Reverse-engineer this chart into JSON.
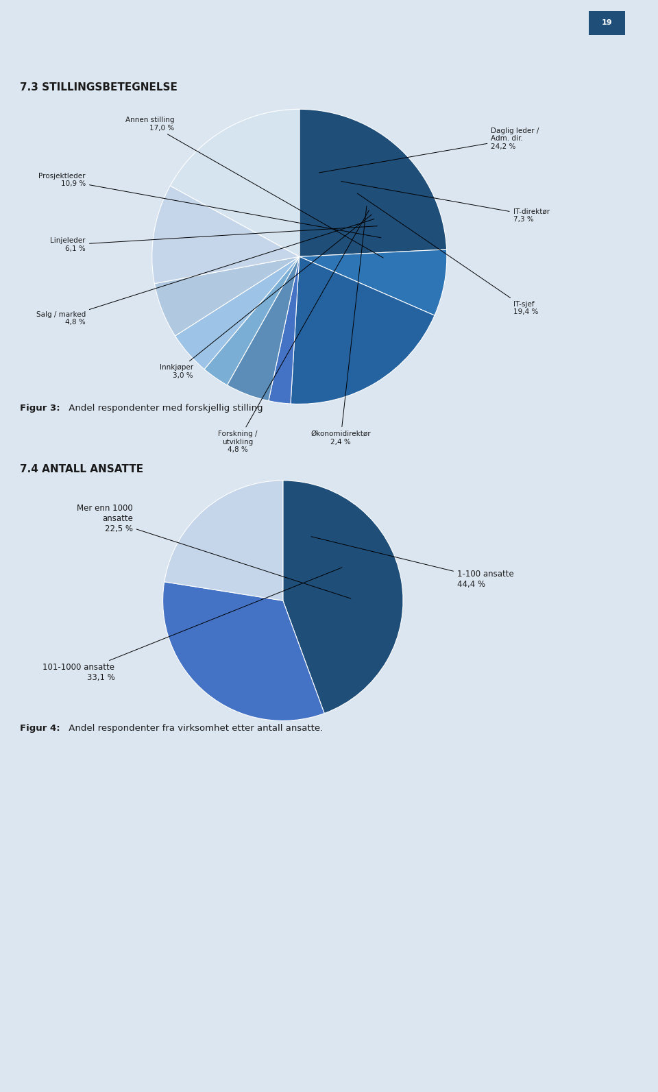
{
  "background_color": "#dce6f1",
  "page_number": "19",
  "chart1": {
    "title": "7.3 STILLINGSBETEGNELSE",
    "label_names": [
      "Daglig leder /\nAdm. dir.",
      "IT-direktør",
      "IT-sjef",
      "Økonomidirektør",
      "Forskning /\nutvikling",
      "Innkjøper",
      "Salg / marked",
      "Linjeleder",
      "Prosjektleder",
      "Annen stilling"
    ],
    "label_pcts": [
      "24,2 %",
      "7,3 %",
      "19,4 %",
      "2,4 %",
      "4,8 %",
      "3,0 %",
      "4,8 %",
      "6,1 %",
      "10,9 %",
      "17,0 %"
    ],
    "values": [
      24.2,
      7.3,
      19.4,
      2.4,
      4.8,
      3.0,
      4.8,
      6.1,
      10.9,
      17.0
    ],
    "colors": [
      "#1f4e79",
      "#2e75b6",
      "#2563a0",
      "#4472c4",
      "#5b8db8",
      "#7aaed4",
      "#9dc3e6",
      "#b0c8e0",
      "#c5d5ea",
      "#d6e4f0"
    ],
    "caption_bold": "Figur 3:",
    "caption_rest": " Andel respondenter med forskjellig stilling"
  },
  "chart2": {
    "title": "7.4 ANTALL ANSATTE",
    "label_names": [
      "1-100 ansatte",
      "101-1000 ansatte",
      "Mer enn 1000\nansatte"
    ],
    "label_pcts": [
      "44,4 %",
      "33,1 %",
      "22,5 %"
    ],
    "values": [
      44.4,
      33.1,
      22.5
    ],
    "colors": [
      "#1f4e79",
      "#4472c4",
      "#c5d5ea"
    ],
    "caption_bold": "Figur 4:",
    "caption_rest": " Andel respondenter fra virksomhet etter antall ansatte."
  }
}
